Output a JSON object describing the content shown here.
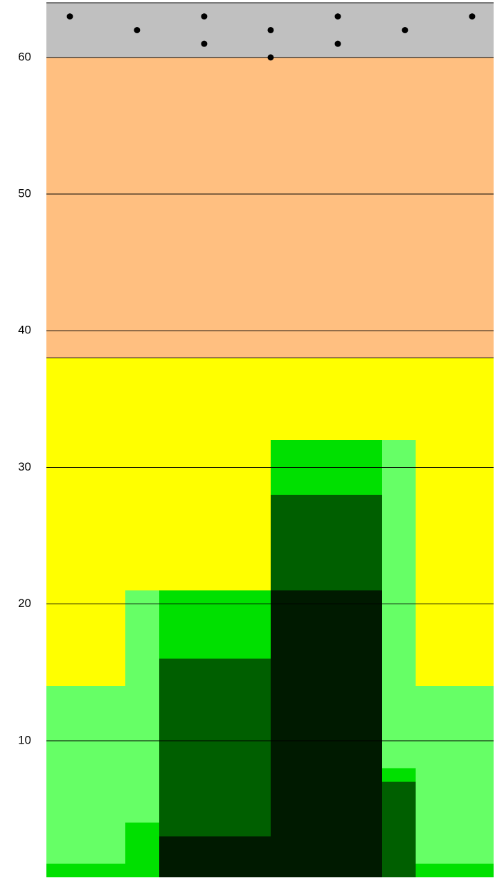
{
  "chart_data": {
    "type": "rects",
    "xlim": [
      0,
      13.32
    ],
    "ylim": [
      0,
      64
    ],
    "yticks": [
      10,
      20,
      30,
      40,
      50,
      60
    ],
    "grid": true,
    "rects": [
      {
        "x": [
          0,
          13.32
        ],
        "y": [
          60,
          64
        ],
        "color": "#c0c0c0",
        "edge": true
      },
      {
        "x": [
          0,
          13.32
        ],
        "y": [
          38,
          60
        ],
        "color": "#ffbf80",
        "edge": true
      },
      {
        "x": [
          0,
          13.32
        ],
        "y": [
          0,
          38
        ],
        "color": "#ffff00",
        "edge": true
      },
      {
        "x": [
          0,
          2.35
        ],
        "y": [
          0,
          14
        ],
        "color": "#66ff66"
      },
      {
        "x": [
          2.35,
          3.36
        ],
        "y": [
          0,
          21
        ],
        "color": "#66ff66"
      },
      {
        "x": [
          10,
          11
        ],
        "y": [
          0,
          32
        ],
        "color": "#66ff66"
      },
      {
        "x": [
          11,
          13.32
        ],
        "y": [
          0,
          14
        ],
        "color": "#66ff66"
      },
      {
        "x": [
          0,
          2.35
        ],
        "y": [
          0,
          1
        ],
        "color": "#00e000"
      },
      {
        "x": [
          2.35,
          3.36
        ],
        "y": [
          0,
          4
        ],
        "color": "#00e000"
      },
      {
        "x": [
          3.36,
          6.68
        ],
        "y": [
          16,
          21
        ],
        "color": "#00e000"
      },
      {
        "x": [
          6.68,
          10
        ],
        "y": [
          28,
          32
        ],
        "color": "#00e000"
      },
      {
        "x": [
          10,
          11
        ],
        "y": [
          7,
          8
        ],
        "color": "#00e000"
      },
      {
        "x": [
          11,
          13.32
        ],
        "y": [
          0,
          1
        ],
        "color": "#00e000"
      },
      {
        "x": [
          3.36,
          6.68
        ],
        "y": [
          3,
          16
        ],
        "color": "#005f00"
      },
      {
        "x": [
          6.68,
          10
        ],
        "y": [
          21,
          28
        ],
        "color": "#005f00"
      },
      {
        "x": [
          10,
          11
        ],
        "y": [
          0,
          7
        ],
        "color": "#005f00"
      },
      {
        "x": [
          3.36,
          6.68
        ],
        "y": [
          0,
          3
        ],
        "color": "#001a00"
      },
      {
        "x": [
          6.68,
          10
        ],
        "y": [
          0,
          21
        ],
        "color": "#001a00"
      }
    ],
    "points": {
      "color": "#000000",
      "x": [
        0.7,
        2.7,
        4.7,
        4.7,
        6.68,
        6.68,
        8.68,
        8.68,
        10.68,
        12.68
      ],
      "y": [
        63,
        62,
        63,
        61,
        62,
        60,
        63,
        61,
        62,
        63
      ]
    }
  }
}
